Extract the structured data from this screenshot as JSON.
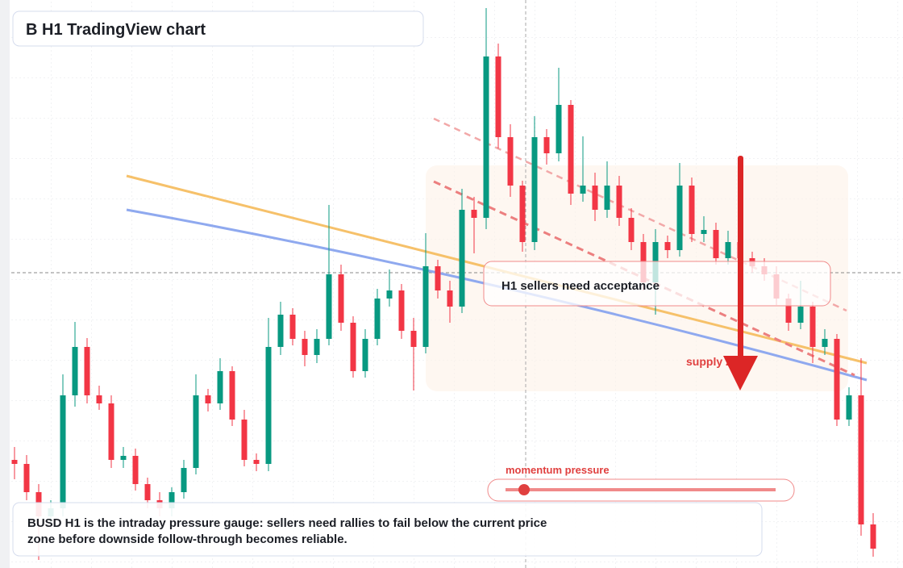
{
  "chart_data": {
    "type": "candlestick",
    "title": "B H1 TradingView chart",
    "open": [
      134,
      129,
      94,
      64,
      74,
      214,
      274,
      214,
      204,
      134,
      139,
      104,
      84,
      74,
      94,
      124,
      214,
      204,
      244,
      184,
      134,
      129,
      274,
      314,
      284,
      264,
      284,
      364,
      304,
      244,
      284,
      334,
      344,
      294,
      274,
      374,
      344,
      324,
      444,
      434,
      634,
      534,
      474,
      404,
      534,
      514,
      574,
      464,
      474,
      444,
      474,
      434,
      404,
      354,
      404,
      394,
      474,
      414,
      419,
      384,
      404,
      384,
      374,
      364,
      334,
      304,
      324,
      274,
      284,
      184,
      214,
      54
    ],
    "high": [
      150,
      140,
      104,
      84,
      240,
      305,
      285,
      226,
      214,
      150,
      148,
      112,
      94,
      100,
      134,
      240,
      222,
      260,
      250,
      196,
      142,
      310,
      330,
      322,
      294,
      296,
      450,
      376,
      312,
      296,
      346,
      370,
      352,
      310,
      415,
      382,
      356,
      470,
      460,
      694,
      650,
      550,
      480,
      560,
      544,
      620,
      580,
      535,
      490,
      504,
      486,
      446,
      414,
      420,
      412,
      502,
      484,
      436,
      428,
      418,
      412,
      392,
      384,
      374,
      340,
      356,
      330,
      296,
      290,
      224,
      260,
      68
    ],
    "low": [
      110,
      84,
      10,
      54,
      64,
      200,
      204,
      196,
      124,
      124,
      96,
      74,
      64,
      64,
      86,
      116,
      194,
      196,
      176,
      126,
      120,
      120,
      264,
      276,
      250,
      254,
      276,
      294,
      236,
      236,
      276,
      324,
      284,
      220,
      266,
      334,
      304,
      316,
      390,
      420,
      520,
      460,
      392,
      394,
      500,
      504,
      450,
      454,
      430,
      434,
      424,
      394,
      344,
      314,
      384,
      386,
      404,
      404,
      376,
      376,
      374,
      366,
      356,
      326,
      294,
      296,
      254,
      264,
      176,
      176,
      40,
      14
    ],
    "close": [
      129,
      94,
      64,
      74,
      214,
      274,
      214,
      204,
      134,
      139,
      104,
      84,
      74,
      94,
      124,
      214,
      204,
      244,
      184,
      134,
      129,
      274,
      314,
      284,
      264,
      284,
      364,
      304,
      244,
      284,
      334,
      344,
      294,
      274,
      374,
      344,
      324,
      444,
      434,
      634,
      534,
      474,
      404,
      534,
      514,
      574,
      464,
      474,
      444,
      474,
      434,
      404,
      354,
      404,
      394,
      474,
      414,
      419,
      384,
      404,
      384,
      374,
      364,
      334,
      304,
      324,
      274,
      284,
      184,
      214,
      54,
      24
    ],
    "ylim": [
      0,
      704
    ],
    "up_color": "#089981",
    "down_color": "#f23645",
    "callout": "H1 sellers need acceptance",
    "zone_label": "supply zone",
    "slider_label": "momentum pressure",
    "note": [
      "BUSD H1 is the intraday pressure gauge: sellers need rallies to fail below the current price",
      "zone before downside follow-through becomes reliable."
    ]
  }
}
